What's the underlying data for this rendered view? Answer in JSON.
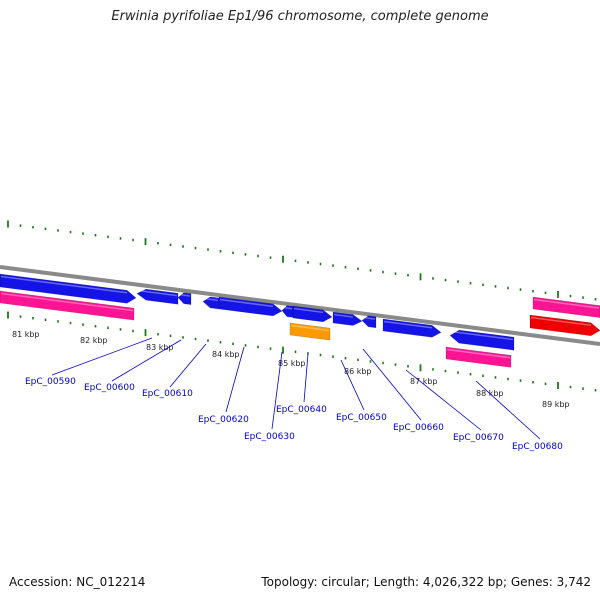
{
  "title": "Erwinia pyrifoliae Ep1/96 chromosome, complete genome",
  "footer": {
    "accession": "Accession: NC_012214",
    "summary": "Topology: circular; Length: 4,026,322 bp; Genes: 3,742"
  },
  "colors": {
    "backbone": "#8a8a8a",
    "ticks": "#1a7a1a",
    "gene_blue": "#1414e6",
    "gene_pink": "#ff1493",
    "gene_orange": "#ff9900",
    "gene_red": "#ee0000",
    "label_line": "#0000cc"
  },
  "kbp_labels": [
    "81 kbp",
    "82 kbp",
    "83 kbp",
    "84 kbp",
    "85 kbp",
    "86 kbp",
    "87 kbp",
    "88 kbp",
    "89 kbp"
  ],
  "gene_labels": [
    "EpC_00590",
    "EpC_00600",
    "EpC_00610",
    "EpC_00620",
    "EpC_00630",
    "EpC_00640",
    "EpC_00650",
    "EpC_00660",
    "EpC_00670",
    "EpC_00680"
  ]
}
